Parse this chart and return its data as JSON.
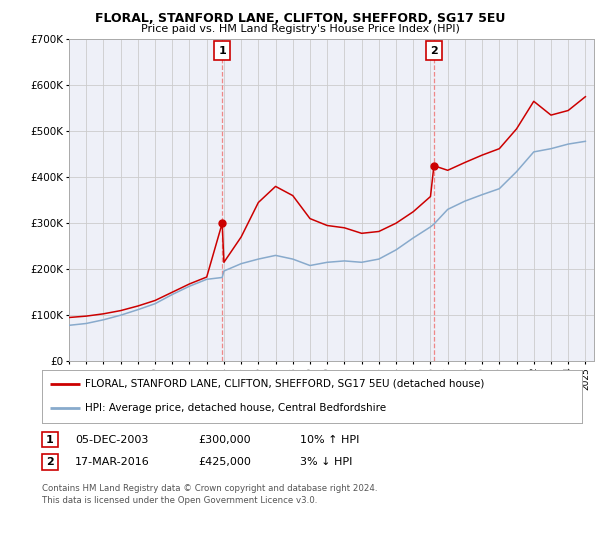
{
  "title": "FLORAL, STANFORD LANE, CLIFTON, SHEFFORD, SG17 5EU",
  "subtitle": "Price paid vs. HM Land Registry's House Price Index (HPI)",
  "ylim": [
    0,
    700000
  ],
  "xlim_start": 1995,
  "xlim_end": 2025.5,
  "legend_line1": "FLORAL, STANFORD LANE, CLIFTON, SHEFFORD, SG17 5EU (detached house)",
  "legend_line2": "HPI: Average price, detached house, Central Bedfordshire",
  "sale1_date": "05-DEC-2003",
  "sale1_price": "£300,000",
  "sale1_hpi": "10% ↑ HPI",
  "sale2_date": "17-MAR-2016",
  "sale2_price": "£425,000",
  "sale2_hpi": "3% ↓ HPI",
  "footnote": "Contains HM Land Registry data © Crown copyright and database right 2024.\nThis data is licensed under the Open Government Licence v3.0.",
  "line_color_red": "#cc0000",
  "line_color_blue": "#88aacc",
  "vline_color": "#ee8888",
  "grid_color": "#cccccc",
  "bg_color": "#ffffff",
  "plot_bg": "#eef0f8",
  "ytick_labels": [
    "£0",
    "£100K",
    "£200K",
    "£300K",
    "£400K",
    "£500K",
    "£600K",
    "£700K"
  ],
  "ytick_values": [
    0,
    100000,
    200000,
    300000,
    400000,
    500000,
    600000,
    700000
  ],
  "years": [
    1995,
    1996,
    1997,
    1998,
    1999,
    2000,
    2001,
    2002,
    2003,
    2003.9,
    2004,
    2005,
    2006,
    2007,
    2008,
    2009,
    2010,
    2011,
    2012,
    2013,
    2014,
    2015,
    2016,
    2016.2,
    2017,
    2018,
    2019,
    2020,
    2021,
    2022,
    2023,
    2024,
    2025
  ],
  "hpi_values": [
    78000,
    82000,
    90000,
    100000,
    112000,
    125000,
    145000,
    163000,
    178000,
    182000,
    196000,
    212000,
    222000,
    230000,
    222000,
    208000,
    215000,
    218000,
    215000,
    222000,
    242000,
    268000,
    292000,
    298000,
    330000,
    348000,
    362000,
    375000,
    412000,
    455000,
    462000,
    472000,
    478000
  ],
  "price_values": [
    95000,
    98000,
    103000,
    110000,
    120000,
    132000,
    150000,
    168000,
    183000,
    300000,
    215000,
    270000,
    345000,
    380000,
    360000,
    310000,
    295000,
    290000,
    278000,
    282000,
    300000,
    325000,
    358000,
    425000,
    415000,
    432000,
    448000,
    462000,
    505000,
    565000,
    535000,
    545000,
    575000
  ],
  "sale1_x": 2003.9,
  "sale1_y": 300000,
  "sale2_x": 2016.2,
  "sale2_y": 425000
}
